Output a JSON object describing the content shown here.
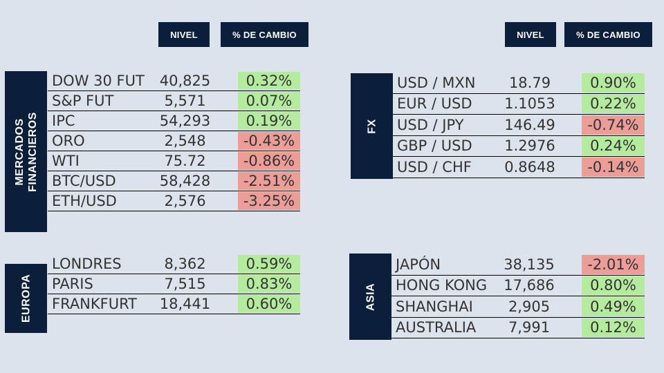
{
  "headers": {
    "left": {
      "nivel": "NIVEL",
      "cambio": "% DE CAMBIO"
    },
    "right": {
      "nivel": "NIVEL",
      "cambio": "% DE CAMBIO"
    }
  },
  "colors": {
    "header_bg": "#0b1f3a",
    "positive": "#b5eb9e",
    "negative": "#ec9d98",
    "background": "#dde3ec"
  },
  "sections": {
    "mercados": {
      "label_line1": "MERCADOS",
      "label_line2": "FINANCIEROS",
      "rows": [
        {
          "name": "DOW 30 FUT",
          "level": "40,825",
          "change": "0.32%",
          "direction": "up"
        },
        {
          "name": "S&P FUT",
          "level": "5,571",
          "change": "0.07%",
          "direction": "up"
        },
        {
          "name": "IPC",
          "level": "54,293",
          "change": "0.19%",
          "direction": "up"
        },
        {
          "name": "ORO",
          "level": "2,548",
          "change": "-0.43%",
          "direction": "down"
        },
        {
          "name": "WTI",
          "level": "75.72",
          "change": "-0.86%",
          "direction": "down"
        },
        {
          "name": "BTC/USD",
          "level": "58,428",
          "change": "-2.51%",
          "direction": "down"
        },
        {
          "name": "ETH/USD",
          "level": "2,576",
          "change": "-3.25%",
          "direction": "down"
        }
      ]
    },
    "fx": {
      "label": "FX",
      "rows": [
        {
          "name": "USD / MXN",
          "level": "18.79",
          "change": "0.90%",
          "direction": "up"
        },
        {
          "name": "EUR / USD",
          "level": "1.1053",
          "change": "0.22%",
          "direction": "up"
        },
        {
          "name": "USD / JPY",
          "level": "146.49",
          "change": "-0.74%",
          "direction": "down"
        },
        {
          "name": "GBP / USD",
          "level": "1.2976",
          "change": "0.24%",
          "direction": "up"
        },
        {
          "name": "USD / CHF",
          "level": "0.8648",
          "change": "-0.14%",
          "direction": "down"
        }
      ]
    },
    "europa": {
      "label": "EUROPA",
      "rows": [
        {
          "name": "LONDRES",
          "level": "8,362",
          "change": "0.59%",
          "direction": "up"
        },
        {
          "name": "PARIS",
          "level": "7,515",
          "change": "0.83%",
          "direction": "up"
        },
        {
          "name": "FRANKFURT",
          "level": "18,441",
          "change": "0.60%",
          "direction": "up"
        }
      ]
    },
    "asia": {
      "label": "ASIA",
      "rows": [
        {
          "name": "JAPÓN",
          "level": "38,135",
          "change": "-2.01%",
          "direction": "down"
        },
        {
          "name": "HONG KONG",
          "level": "17,686",
          "change": "0.80%",
          "direction": "up"
        },
        {
          "name": "SHANGHAI",
          "level": "2,905",
          "change": "0.49%",
          "direction": "up"
        },
        {
          "name": "AUSTRALIA",
          "level": "7,991",
          "change": "0.12%",
          "direction": "up"
        }
      ]
    }
  }
}
